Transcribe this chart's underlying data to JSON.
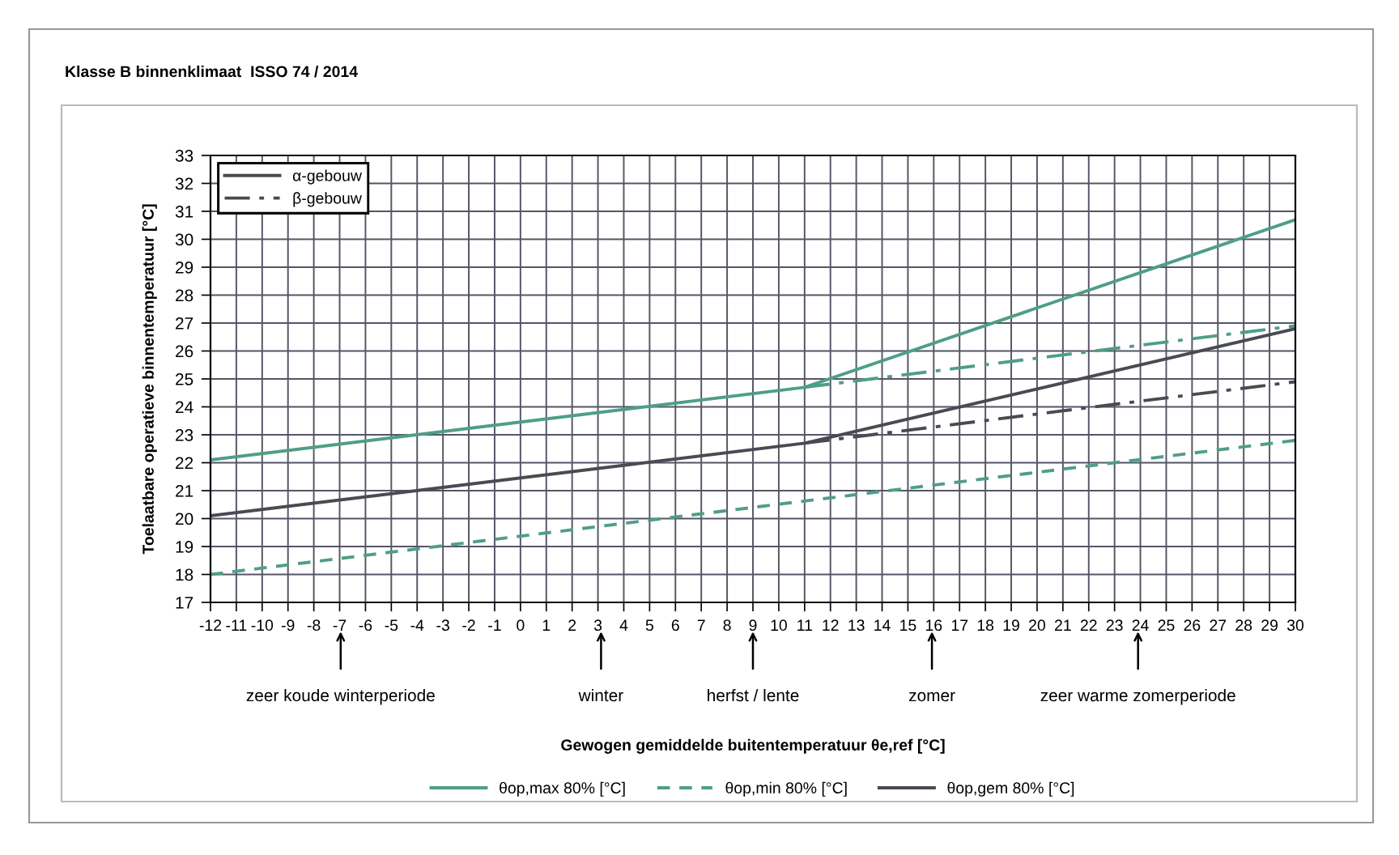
{
  "chart_data": {
    "type": "line",
    "title": "Klasse B binnenklimaat  ISSO 74 / 2014",
    "ylabel": "Toelaatbare operatieve binnentemperatuur [°C]",
    "xlim": [
      -12,
      30
    ],
    "xticks": [
      -12,
      -11,
      -10,
      -9,
      -8,
      -7,
      -6,
      -5,
      -4,
      -3,
      -2,
      -1,
      0,
      1,
      2,
      3,
      4,
      5,
      6,
      7,
      8,
      9,
      10,
      11,
      12,
      13,
      14,
      15,
      16,
      17,
      18,
      19,
      20,
      21,
      22,
      23,
      24,
      25,
      26,
      27,
      28,
      29,
      30
    ],
    "ylim": [
      17,
      33
    ],
    "yticks": [
      17,
      18,
      19,
      20,
      21,
      22,
      23,
      24,
      25,
      26,
      27,
      28,
      29,
      30,
      31,
      32,
      33
    ],
    "grid": true,
    "legend": "bottom",
    "series": [
      {
        "name": "θop,max 80% [°C]",
        "color": "#4f9e86",
        "line_style": "solid",
        "x": [
          -12,
          11,
          30
        ],
        "values": [
          22.1,
          24.7,
          30.7
        ]
      },
      {
        "color": "#4f9e86",
        "line_style": "dashdot",
        "x": [
          11,
          30
        ],
        "values": [
          24.7,
          26.9
        ]
      },
      {
        "name": "θop,min 80% [°C]",
        "color": "#4f9e86",
        "line_style": "dashed",
        "x": [
          -12,
          30
        ],
        "values": [
          18.0,
          22.8
        ]
      },
      {
        "name": "θop,gem 80% [°C]",
        "color": "#4a4a52",
        "line_style": "solid",
        "x": [
          -12,
          11,
          30
        ],
        "values": [
          20.1,
          22.7,
          26.8
        ]
      },
      {
        "name": "β-gebouw",
        "color": "#4a4a52",
        "line_style": "dashdot",
        "x": [
          11,
          30
        ],
        "values": [
          22.7,
          24.9
        ]
      }
    ],
    "annotations": [
      "α-gebouw",
      "zeer koude winterperiode",
      "winter",
      "herfst / lente",
      "zomer",
      "zeer warme zomerperiode",
      "Gewogen gemiddelde buitentemperatuur θe,ref [°C]"
    ]
  }
}
